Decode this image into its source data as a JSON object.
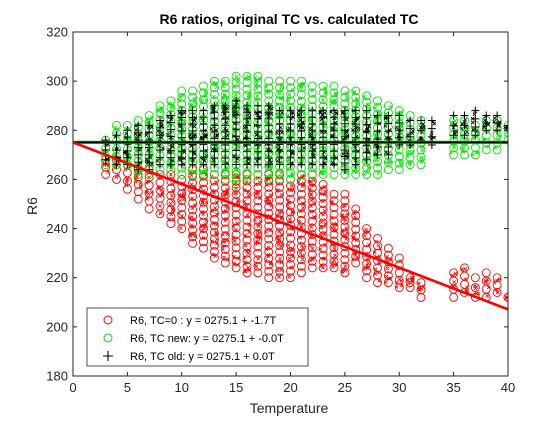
{
  "chart_data": {
    "type": "scatter",
    "title": "R6 ratios, original TC vs. calculated TC",
    "xlabel": "Temperature",
    "ylabel": "R6",
    "xlim": [
      0,
      40
    ],
    "ylim": [
      180,
      320
    ],
    "xticks": [
      0,
      5,
      10,
      15,
      20,
      25,
      30,
      35,
      40
    ],
    "yticks": [
      180,
      200,
      220,
      240,
      260,
      280,
      300,
      320
    ],
    "grid": false,
    "legend_position": "bottom-left",
    "series": [
      {
        "name": "R6, TC=0  :  y = 0275.1 + -1.7T",
        "marker": "circle",
        "color": "#ff0000",
        "fit": {
          "intercept": 275.1,
          "slope": -1.7
        },
        "x": [
          3,
          4,
          5,
          6,
          7,
          8,
          9,
          10,
          11,
          12,
          13,
          14,
          15,
          16,
          17,
          18,
          19,
          20,
          21,
          22,
          23,
          24,
          25,
          26,
          27,
          28,
          29,
          30,
          31,
          32,
          35,
          36,
          37,
          38,
          39,
          40
        ],
        "y_min": [
          262,
          260,
          256,
          252,
          248,
          246,
          242,
          240,
          234,
          232,
          228,
          226,
          224,
          222,
          222,
          220,
          220,
          220,
          222,
          224,
          224,
          224,
          222,
          226,
          220,
          218,
          218,
          216,
          216,
          212,
          212,
          214,
          212,
          212,
          214,
          212
        ],
        "y_max": [
          268,
          268,
          266,
          264,
          264,
          262,
          262,
          260,
          264,
          264,
          262,
          262,
          262,
          262,
          262,
          262,
          262,
          260,
          262,
          262,
          258,
          254,
          254,
          248,
          240,
          236,
          232,
          228,
          220,
          218,
          222,
          224,
          220,
          222,
          220,
          212
        ]
      },
      {
        "name": "R6, TC new: y = 0275.1 + -0.0T",
        "marker": "circle",
        "color": "#00e600",
        "fit": {
          "intercept": 275.1,
          "slope": 0.0
        },
        "x": [
          3,
          4,
          5,
          6,
          7,
          8,
          9,
          10,
          11,
          12,
          13,
          14,
          15,
          16,
          17,
          18,
          19,
          20,
          21,
          22,
          23,
          24,
          25,
          26,
          27,
          28,
          29,
          30,
          31,
          32,
          35,
          36,
          37,
          38,
          39,
          40
        ],
        "y_min": [
          266,
          266,
          266,
          262,
          262,
          264,
          264,
          262,
          262,
          262,
          262,
          260,
          258,
          260,
          262,
          260,
          260,
          260,
          262,
          262,
          262,
          262,
          262,
          262,
          262,
          262,
          264,
          264,
          266,
          266,
          270,
          270,
          270,
          272,
          272,
          276
        ],
        "y_max": [
          276,
          282,
          282,
          284,
          286,
          290,
          292,
          296,
          296,
          298,
          300,
          300,
          302,
          302,
          302,
          300,
          300,
          300,
          300,
          298,
          298,
          298,
          296,
          296,
          294,
          292,
          290,
          288,
          286,
          284,
          284,
          284,
          282,
          284,
          284,
          282
        ]
      },
      {
        "name": "R6, TC old: y = 0275.1 + 0.0T",
        "marker": "plus",
        "color": "#000000",
        "fit": {
          "intercept": 275.1,
          "slope": 0.0
        },
        "x": [
          3,
          4,
          5,
          6,
          7,
          8,
          9,
          10,
          11,
          12,
          13,
          14,
          15,
          16,
          17,
          18,
          19,
          20,
          21,
          22,
          23,
          24,
          25,
          26,
          27,
          28,
          29,
          30,
          31,
          32,
          33,
          35,
          36,
          37,
          38,
          39,
          40
        ],
        "y_min": [
          268,
          266,
          266,
          264,
          264,
          266,
          266,
          266,
          266,
          266,
          266,
          266,
          266,
          266,
          266,
          266,
          266,
          266,
          266,
          266,
          266,
          266,
          264,
          266,
          268,
          270,
          270,
          274,
          274,
          276,
          274,
          278,
          278,
          278,
          280,
          280,
          280
        ],
        "y_max": [
          276,
          278,
          280,
          282,
          282,
          284,
          286,
          288,
          288,
          288,
          290,
          290,
          292,
          290,
          290,
          290,
          288,
          288,
          288,
          288,
          288,
          288,
          288,
          288,
          288,
          286,
          286,
          286,
          284,
          284,
          284,
          286,
          286,
          288,
          286,
          286,
          282
        ]
      }
    ]
  }
}
